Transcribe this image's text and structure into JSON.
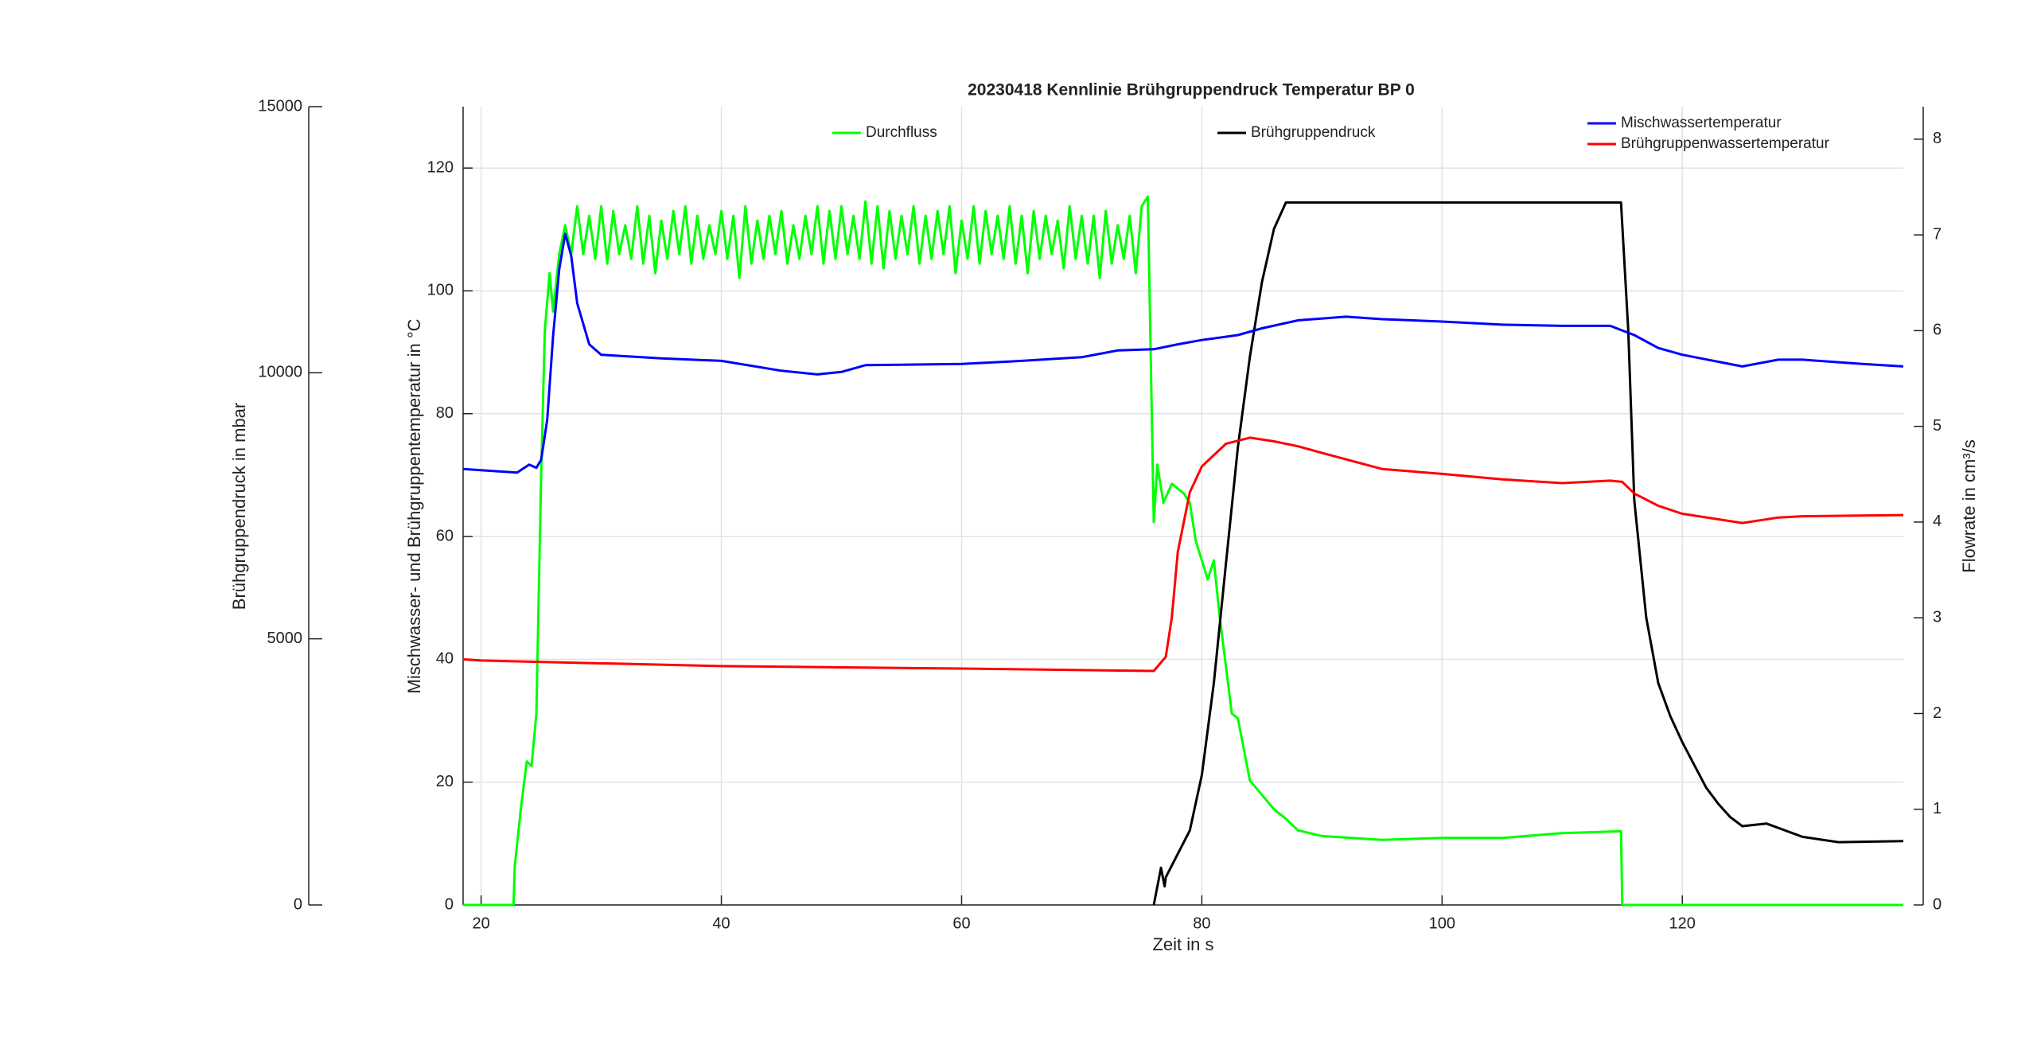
{
  "chart_data": {
    "type": "line",
    "title": "20230418 Kennlinie Brühgruppendruck Temperatur BP 0",
    "x_label": "Zeit in s",
    "y_label": "Mischwasser- und Brühgruppentemperatur in °C",
    "y2_label": "Flowrate in cm³/s",
    "y3_label": "Brühgruppendruck in mbar",
    "xlim": [
      18.5,
      138.4
    ],
    "xticks": [
      20,
      40,
      60,
      80,
      100,
      120
    ],
    "ylim": [
      0,
      130
    ],
    "yticks": [
      0,
      20,
      40,
      60,
      80,
      100,
      120
    ],
    "y2lim": [
      0,
      8.34
    ],
    "y2ticks": [
      0,
      1,
      2,
      3,
      4,
      5,
      6,
      7,
      8
    ],
    "y3lim": [
      0,
      15000
    ],
    "y3ticks": [
      0,
      5000,
      10000,
      15000
    ],
    "grid": true,
    "series": [
      {
        "name": "Durchfluss",
        "color": "#00ff00",
        "axis": "y2",
        "x": [
          18.5,
          22.7,
          22.8,
          23.3,
          23.8,
          24.2,
          24.6,
          25,
          25.3,
          25.7,
          26,
          26.5,
          27,
          27.5,
          28,
          28.5,
          29,
          29.5,
          30,
          30.5,
          31,
          31.5,
          32,
          32.5,
          33,
          33.5,
          34,
          34.5,
          35,
          35.5,
          36,
          36.5,
          37,
          37.5,
          38,
          38.5,
          39,
          39.5,
          40,
          40.5,
          41,
          41.5,
          42,
          42.5,
          43,
          43.5,
          44,
          44.5,
          45,
          45.5,
          46,
          46.5,
          47,
          47.5,
          48,
          48.5,
          49,
          49.5,
          50,
          50.5,
          51,
          51.5,
          52,
          52.5,
          53,
          53.5,
          54,
          54.5,
          55,
          55.5,
          56,
          56.5,
          57,
          57.5,
          58,
          58.5,
          59,
          59.5,
          60,
          60.5,
          61,
          61.5,
          62,
          62.5,
          63,
          63.5,
          64,
          64.5,
          65,
          65.5,
          66,
          66.5,
          67,
          67.5,
          68,
          68.5,
          69,
          69.5,
          70,
          70.5,
          71,
          71.5,
          72,
          72.5,
          73,
          73.5,
          74,
          74.5,
          75,
          75.5,
          76,
          76.3,
          76.8,
          77.5,
          78.5,
          79,
          79.5,
          80,
          80.5,
          81,
          81.5,
          82,
          82.5,
          83,
          84,
          85,
          86,
          87,
          88,
          90,
          95,
          100,
          105,
          110,
          114.9,
          115,
          138.4
        ],
        "values": [
          0,
          0,
          0.4,
          1.0,
          1.5,
          1.45,
          2.0,
          4.5,
          6.0,
          6.6,
          6.2,
          6.8,
          7.1,
          6.8,
          7.3,
          6.8,
          7.2,
          6.75,
          7.3,
          6.7,
          7.25,
          6.8,
          7.1,
          6.75,
          7.3,
          6.7,
          7.2,
          6.6,
          7.15,
          6.75,
          7.25,
          6.8,
          7.3,
          6.7,
          7.2,
          6.75,
          7.1,
          6.8,
          7.25,
          6.75,
          7.2,
          6.55,
          7.3,
          6.7,
          7.15,
          6.75,
          7.2,
          6.8,
          7.25,
          6.7,
          7.1,
          6.75,
          7.2,
          6.8,
          7.3,
          6.7,
          7.25,
          6.75,
          7.3,
          6.8,
          7.2,
          6.75,
          7.35,
          6.7,
          7.3,
          6.65,
          7.25,
          6.75,
          7.2,
          6.8,
          7.3,
          6.7,
          7.2,
          6.75,
          7.25,
          6.8,
          7.3,
          6.6,
          7.15,
          6.75,
          7.3,
          6.7,
          7.25,
          6.8,
          7.2,
          6.75,
          7.3,
          6.7,
          7.2,
          6.6,
          7.25,
          6.75,
          7.2,
          6.8,
          7.15,
          6.65,
          7.3,
          6.75,
          7.2,
          6.7,
          7.2,
          6.55,
          7.25,
          6.7,
          7.1,
          6.75,
          7.2,
          6.6,
          7.3,
          7.4,
          4.0,
          4.6,
          4.2,
          4.4,
          4.3,
          4.2,
          3.8,
          3.6,
          3.4,
          3.6,
          3.0,
          2.5,
          2.0,
          1.95,
          1.3,
          1.15,
          1.0,
          0.9,
          0.78,
          0.72,
          0.68,
          0.7,
          0.7,
          0.75,
          0.77,
          0,
          0
        ]
      },
      {
        "name": "Brühgruppendruck",
        "color": "#000000",
        "axis": "y3",
        "x": [
          76,
          76.6,
          76.9,
          77,
          78,
          79,
          80,
          81,
          82,
          83,
          84,
          85,
          86,
          87,
          100,
          114.9,
          115.5,
          116,
          117,
          118,
          119,
          120,
          122,
          123,
          124,
          125,
          127,
          130,
          133,
          138.4
        ],
        "values": [
          0,
          700,
          350,
          520,
          960,
          1400,
          2440,
          4170,
          6400,
          8600,
          10300,
          11700,
          12700,
          13200,
          13200,
          13200,
          10800,
          7600,
          5400,
          4170,
          3550,
          3060,
          2200,
          1900,
          1650,
          1480,
          1530,
          1280,
          1180,
          1200
        ]
      },
      {
        "name": "Mischwassertemperatur",
        "color": "#0000ff",
        "axis": "y",
        "x": [
          18.5,
          23,
          24,
          24.6,
          25,
          25.5,
          26,
          26.5,
          27,
          27.5,
          28,
          29,
          30,
          35,
          40,
          45,
          48,
          50,
          52,
          60,
          65,
          70,
          73,
          76,
          78,
          80,
          83,
          85,
          88,
          92,
          95,
          100,
          105,
          110,
          114,
          116,
          118,
          120,
          125,
          128,
          130,
          135,
          138.4
        ],
        "values": [
          71,
          70.4,
          71.7,
          71.2,
          72.5,
          79,
          92.8,
          103.5,
          109.3,
          105.7,
          98,
          91.3,
          89.6,
          89,
          88.6,
          87,
          86.4,
          86.8,
          87.9,
          88.1,
          88.6,
          89.2,
          90.3,
          90.5,
          91.3,
          92,
          92.8,
          93.9,
          95.2,
          95.8,
          95.4,
          95,
          94.5,
          94.3,
          94.3,
          92.8,
          90.7,
          89.6,
          87.7,
          88.8,
          88.8,
          88.1,
          87.7
        ]
      },
      {
        "name": "Brühgruppenwassertemperatur",
        "color": "#ff0000",
        "axis": "y",
        "x": [
          18.5,
          20,
          40,
          60,
          76,
          77,
          77.5,
          78,
          79,
          80,
          82,
          84,
          86,
          88,
          90,
          95,
          100,
          105,
          110,
          114,
          115,
          116,
          118,
          120,
          125,
          128,
          130,
          138.4
        ],
        "values": [
          40,
          39.8,
          38.9,
          38.5,
          38.1,
          40.4,
          46.8,
          57.5,
          67.2,
          71.4,
          75.1,
          76.1,
          75.5,
          74.7,
          73.6,
          71,
          70.2,
          69.3,
          68.7,
          69.1,
          68.9,
          67,
          65,
          63.7,
          62.2,
          63.1,
          63.3,
          63.5
        ]
      }
    ]
  }
}
